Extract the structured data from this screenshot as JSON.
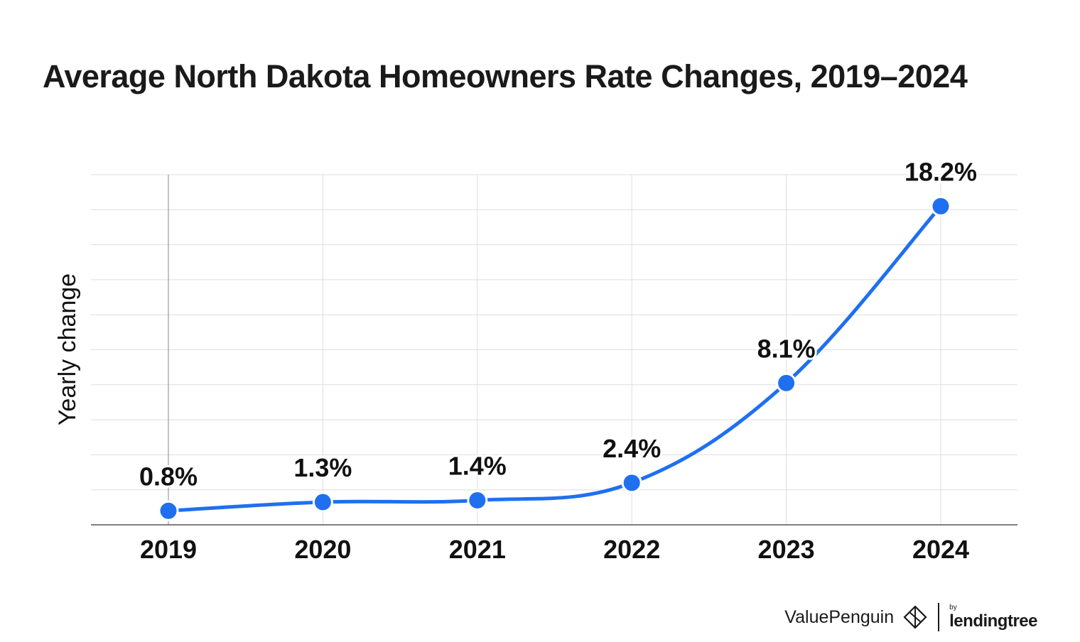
{
  "title": "Average North Dakota Homeowners Rate Changes, 2019–2024",
  "chart_data": {
    "type": "line",
    "title": "Average North Dakota Homeowners Rate Changes, 2019–2024",
    "xlabel": "",
    "ylabel": "Yearly change",
    "categories": [
      "2019",
      "2020",
      "2021",
      "2022",
      "2023",
      "2024"
    ],
    "values": [
      0.8,
      1.3,
      1.4,
      2.4,
      8.1,
      18.2
    ],
    "data_labels": [
      "0.8%",
      "1.3%",
      "1.4%",
      "2.4%",
      "8.1%",
      "18.2%"
    ],
    "ylim": [
      0,
      20
    ],
    "grid": true,
    "line_color": "#1f6ff0"
  },
  "branding": {
    "name": "ValuePenguin",
    "by": "by",
    "partner": "lendingtree"
  }
}
